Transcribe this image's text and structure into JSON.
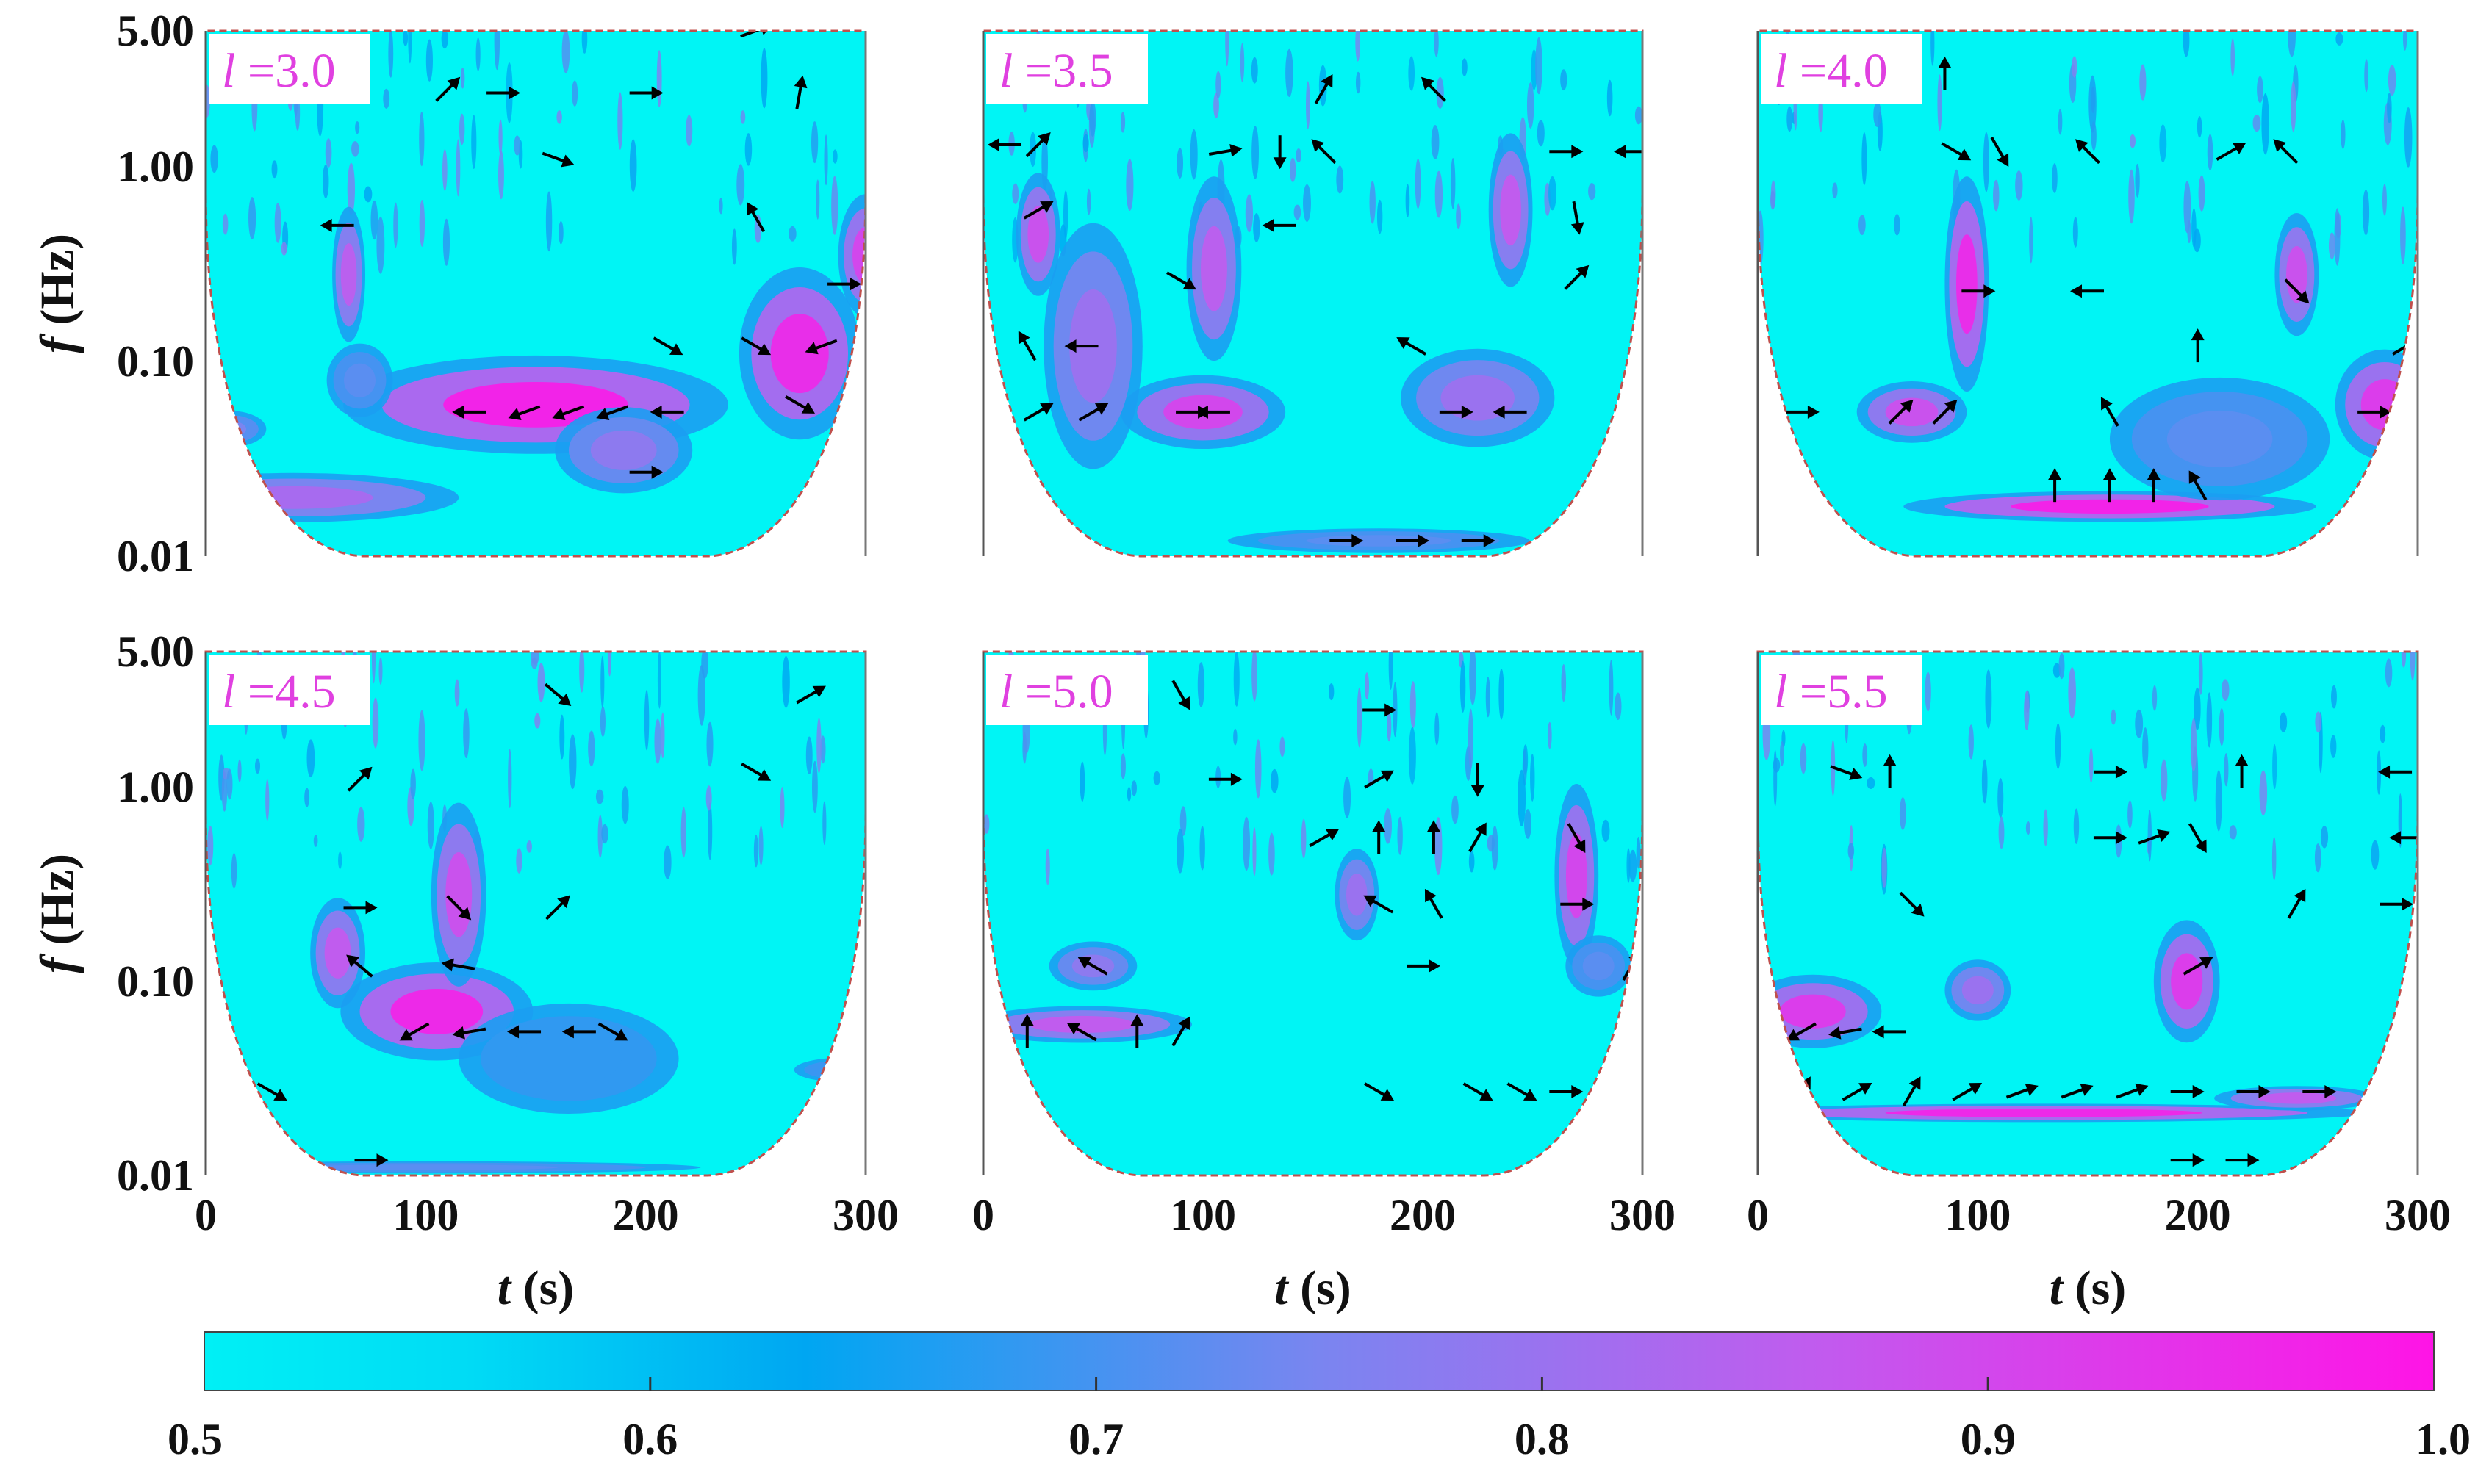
{
  "chart_data": {
    "type": "heatmap",
    "description_type": "wavelet coherence scalograms",
    "x_axis": {
      "label_var": "t",
      "label_unit": " (s)",
      "ticks": [
        "0",
        "100",
        "200",
        "300"
      ],
      "range": [
        0,
        300
      ]
    },
    "y_axis": {
      "label_var": "f",
      "label_unit": " (Hz)",
      "ticks": [
        "5.00",
        "1.00",
        "0.10",
        "0.01"
      ],
      "tick_values": [
        5,
        1,
        0.1,
        0.01
      ],
      "range": [
        0.01,
        5
      ],
      "scale": "log"
    },
    "panels": [
      {
        "var": "l",
        "value": "3.0",
        "blobs": [
          {
            "t": 150,
            "f": 0.06,
            "w": 70,
            "h": 0.16,
            "c": 0.97
          },
          {
            "t": 270,
            "f": 0.11,
            "w": 22,
            "h": 0.28,
            "c": 0.95
          },
          {
            "t": 40,
            "f": 0.02,
            "w": 60,
            "h": 0.08,
            "c": 0.82
          },
          {
            "t": 190,
            "f": 0.035,
            "w": 25,
            "h": 0.14,
            "c": 0.78
          },
          {
            "t": 300,
            "f": 0.35,
            "w": 10,
            "h": 0.2,
            "c": 0.9
          },
          {
            "t": 65,
            "f": 0.28,
            "w": 6,
            "h": 0.22,
            "c": 0.85
          },
          {
            "t": 70,
            "f": 0.08,
            "w": 12,
            "h": 0.12,
            "c": 0.72
          },
          {
            "t": 10,
            "f": 0.045,
            "w": 14,
            "h": 0.06,
            "c": 0.75
          }
        ],
        "arrows": [
          {
            "t": 60,
            "f": 0.5,
            "a": 180
          },
          {
            "t": 110,
            "f": 2.5,
            "a": 45
          },
          {
            "t": 135,
            "f": 2.4,
            "a": 0
          },
          {
            "t": 160,
            "f": 1.1,
            "a": -20
          },
          {
            "t": 200,
            "f": 2.4,
            "a": 0
          },
          {
            "t": 250,
            "f": 5,
            "a": 20
          },
          {
            "t": 270,
            "f": 2.4,
            "a": 80
          },
          {
            "t": 250,
            "f": 0.55,
            "a": 120
          },
          {
            "t": 290,
            "f": 0.25,
            "a": 0
          },
          {
            "t": 250,
            "f": 0.12,
            "a": -30
          },
          {
            "t": 280,
            "f": 0.12,
            "a": 200
          },
          {
            "t": 270,
            "f": 0.06,
            "a": -30
          },
          {
            "t": 210,
            "f": 0.12,
            "a": -30
          },
          {
            "t": 120,
            "f": 0.055,
            "a": 180
          },
          {
            "t": 145,
            "f": 0.055,
            "a": 200
          },
          {
            "t": 165,
            "f": 0.055,
            "a": 200
          },
          {
            "t": 185,
            "f": 0.055,
            "a": 200
          },
          {
            "t": 210,
            "f": 0.055,
            "a": 180
          },
          {
            "t": 200,
            "f": 0.027,
            "a": 0
          }
        ]
      },
      {
        "var": "l",
        "value": "3.5",
        "blobs": [
          {
            "t": 100,
            "f": 0.055,
            "w": 30,
            "h": 0.12,
            "c": 0.9
          },
          {
            "t": 225,
            "f": 0.065,
            "w": 28,
            "h": 0.16,
            "c": 0.8
          },
          {
            "t": 50,
            "f": 0.12,
            "w": 18,
            "h": 0.4,
            "c": 0.8
          },
          {
            "t": 105,
            "f": 0.3,
            "w": 10,
            "h": 0.3,
            "c": 0.85
          },
          {
            "t": 25,
            "f": 0.45,
            "w": 8,
            "h": 0.2,
            "c": 0.88
          },
          {
            "t": 240,
            "f": 0.6,
            "w": 8,
            "h": 0.25,
            "c": 0.86
          },
          {
            "t": 180,
            "f": 0.012,
            "w": 55,
            "h": 0.04,
            "c": 0.72
          }
        ],
        "arrows": [
          {
            "t": 10,
            "f": 1.3,
            "a": 180
          },
          {
            "t": 25,
            "f": 1.3,
            "a": 45
          },
          {
            "t": 25,
            "f": 0.6,
            "a": 30
          },
          {
            "t": 110,
            "f": 1.2,
            "a": 10
          },
          {
            "t": 135,
            "f": 1.2,
            "a": -90
          },
          {
            "t": 155,
            "f": 1.2,
            "a": 135
          },
          {
            "t": 155,
            "f": 2.5,
            "a": 60
          },
          {
            "t": 205,
            "f": 2.5,
            "a": 135
          },
          {
            "t": 135,
            "f": 0.5,
            "a": 180
          },
          {
            "t": 265,
            "f": 1.2,
            "a": 0
          },
          {
            "t": 295,
            "f": 1.2,
            "a": 180
          },
          {
            "t": 270,
            "f": 0.55,
            "a": -80
          },
          {
            "t": 270,
            "f": 0.27,
            "a": 45
          },
          {
            "t": 90,
            "f": 0.26,
            "a": -30
          },
          {
            "t": 20,
            "f": 0.12,
            "a": 120
          },
          {
            "t": 45,
            "f": 0.12,
            "a": 180
          },
          {
            "t": 25,
            "f": 0.055,
            "a": 30
          },
          {
            "t": 50,
            "f": 0.055,
            "a": 30
          },
          {
            "t": 95,
            "f": 0.055,
            "a": 0
          },
          {
            "t": 105,
            "f": 0.055,
            "a": 180
          },
          {
            "t": 195,
            "f": 0.12,
            "a": 150
          },
          {
            "t": 215,
            "f": 0.055,
            "a": 0
          },
          {
            "t": 240,
            "f": 0.055,
            "a": 180
          },
          {
            "t": 165,
            "f": 0.012,
            "a": 0
          },
          {
            "t": 195,
            "f": 0.012,
            "a": 0
          },
          {
            "t": 225,
            "f": 0.012,
            "a": 0
          }
        ]
      },
      {
        "var": "l",
        "value": "4.0",
        "blobs": [
          {
            "t": 160,
            "f": 0.018,
            "w": 75,
            "h": 0.05,
            "c": 0.97
          },
          {
            "t": 70,
            "f": 0.055,
            "w": 20,
            "h": 0.1,
            "c": 0.88
          },
          {
            "t": 285,
            "f": 0.06,
            "w": 18,
            "h": 0.18,
            "c": 0.92
          },
          {
            "t": 95,
            "f": 0.25,
            "w": 8,
            "h": 0.35,
            "c": 0.95
          },
          {
            "t": 245,
            "f": 0.28,
            "w": 8,
            "h": 0.2,
            "c": 0.88
          },
          {
            "t": 210,
            "f": 0.04,
            "w": 40,
            "h": 0.2,
            "c": 0.72
          }
        ],
        "arrows": [
          {
            "t": 90,
            "f": 1.2,
            "a": -30
          },
          {
            "t": 110,
            "f": 1.2,
            "a": -60
          },
          {
            "t": 150,
            "f": 1.2,
            "a": 135
          },
          {
            "t": 215,
            "f": 1.2,
            "a": 30
          },
          {
            "t": 240,
            "f": 1.2,
            "a": 135
          },
          {
            "t": 85,
            "f": 3,
            "a": 90
          },
          {
            "t": 100,
            "f": 0.23,
            "a": 0
          },
          {
            "t": 150,
            "f": 0.23,
            "a": 180
          },
          {
            "t": 245,
            "f": 0.23,
            "a": -45
          },
          {
            "t": 200,
            "f": 0.12,
            "a": 90
          },
          {
            "t": 295,
            "f": 0.12,
            "a": 30
          },
          {
            "t": 20,
            "f": 0.055,
            "a": 0
          },
          {
            "t": 65,
            "f": 0.055,
            "a": 45
          },
          {
            "t": 85,
            "f": 0.055,
            "a": 45
          },
          {
            "t": 160,
            "f": 0.055,
            "a": 120
          },
          {
            "t": 280,
            "f": 0.055,
            "a": 0
          },
          {
            "t": 135,
            "f": 0.023,
            "a": 90
          },
          {
            "t": 160,
            "f": 0.023,
            "a": 90
          },
          {
            "t": 180,
            "f": 0.023,
            "a": 90
          },
          {
            "t": 200,
            "f": 0.023,
            "a": 120
          }
        ]
      },
      {
        "var": "l",
        "value": "4.5",
        "blobs": [
          {
            "t": 105,
            "f": 0.07,
            "w": 35,
            "h": 0.16,
            "c": 0.96
          },
          {
            "t": 60,
            "f": 0.14,
            "w": 10,
            "h": 0.18,
            "c": 0.86
          },
          {
            "t": 115,
            "f": 0.28,
            "w": 10,
            "h": 0.3,
            "c": 0.88
          },
          {
            "t": 100,
            "f": 0.011,
            "w": 100,
            "h": 0.02,
            "c": 0.72
          },
          {
            "t": 290,
            "f": 0.035,
            "w": 18,
            "h": 0.04,
            "c": 0.7
          },
          {
            "t": 165,
            "f": 0.04,
            "w": 40,
            "h": 0.18,
            "c": 0.68
          }
        ],
        "arrows": [
          {
            "t": 70,
            "f": 1.1,
            "a": 45
          },
          {
            "t": 160,
            "f": 3,
            "a": -40
          },
          {
            "t": 275,
            "f": 3,
            "a": 30
          },
          {
            "t": 250,
            "f": 1.2,
            "a": -30
          },
          {
            "t": 70,
            "f": 0.24,
            "a": 0
          },
          {
            "t": 115,
            "f": 0.24,
            "a": -45
          },
          {
            "t": 160,
            "f": 0.24,
            "a": 45
          },
          {
            "t": 70,
            "f": 0.12,
            "a": 140
          },
          {
            "t": 115,
            "f": 0.12,
            "a": 170
          },
          {
            "t": 95,
            "f": 0.055,
            "a": 210
          },
          {
            "t": 120,
            "f": 0.055,
            "a": 190
          },
          {
            "t": 145,
            "f": 0.055,
            "a": 180
          },
          {
            "t": 170,
            "f": 0.055,
            "a": 180
          },
          {
            "t": 185,
            "f": 0.055,
            "a": -30
          },
          {
            "t": 30,
            "f": 0.027,
            "a": -30
          },
          {
            "t": 75,
            "f": 0.012,
            "a": 0
          }
        ]
      },
      {
        "var": "l",
        "value": "5.0",
        "blobs": [
          {
            "t": 45,
            "f": 0.06,
            "w": 40,
            "h": 0.06,
            "c": 0.86
          },
          {
            "t": 270,
            "f": 0.35,
            "w": 8,
            "h": 0.3,
            "c": 0.9
          },
          {
            "t": 50,
            "f": 0.12,
            "w": 16,
            "h": 0.08,
            "c": 0.78
          },
          {
            "t": 170,
            "f": 0.28,
            "w": 8,
            "h": 0.15,
            "c": 0.8
          },
          {
            "t": 280,
            "f": 0.12,
            "w": 12,
            "h": 0.1,
            "c": 0.72
          }
        ],
        "arrows": [
          {
            "t": 90,
            "f": 3,
            "a": -60
          },
          {
            "t": 180,
            "f": 2.5,
            "a": 0
          },
          {
            "t": 110,
            "f": 1.1,
            "a": 0
          },
          {
            "t": 180,
            "f": 1.1,
            "a": 30
          },
          {
            "t": 225,
            "f": 1.1,
            "a": -90
          },
          {
            "t": 155,
            "f": 0.55,
            "a": 30
          },
          {
            "t": 180,
            "f": 0.55,
            "a": 90
          },
          {
            "t": 205,
            "f": 0.55,
            "a": 90
          },
          {
            "t": 225,
            "f": 0.55,
            "a": 60
          },
          {
            "t": 270,
            "f": 0.55,
            "a": -60
          },
          {
            "t": 180,
            "f": 0.25,
            "a": 150
          },
          {
            "t": 205,
            "f": 0.25,
            "a": 120
          },
          {
            "t": 270,
            "f": 0.25,
            "a": 0
          },
          {
            "t": 50,
            "f": 0.12,
            "a": 150
          },
          {
            "t": 200,
            "f": 0.12,
            "a": 0
          },
          {
            "t": 295,
            "f": 0.12,
            "a": 60
          },
          {
            "t": 20,
            "f": 0.055,
            "a": 90
          },
          {
            "t": 45,
            "f": 0.055,
            "a": 150
          },
          {
            "t": 70,
            "f": 0.055,
            "a": 90
          },
          {
            "t": 90,
            "f": 0.055,
            "a": 60
          },
          {
            "t": 180,
            "f": 0.027,
            "a": -30
          },
          {
            "t": 225,
            "f": 0.027,
            "a": -30
          },
          {
            "t": 245,
            "f": 0.027,
            "a": -30
          },
          {
            "t": 265,
            "f": 0.027,
            "a": 0
          }
        ]
      },
      {
        "var": "l",
        "value": "5.5",
        "blobs": [
          {
            "t": 130,
            "f": 0.021,
            "w": 120,
            "h": 0.03,
            "c": 0.96
          },
          {
            "t": 25,
            "f": 0.07,
            "w": 25,
            "h": 0.12,
            "c": 0.92
          },
          {
            "t": 195,
            "f": 0.1,
            "w": 12,
            "h": 0.2,
            "c": 0.92
          },
          {
            "t": 100,
            "f": 0.09,
            "w": 12,
            "h": 0.1,
            "c": 0.8
          },
          {
            "t": 245,
            "f": 0.025,
            "w": 30,
            "h": 0.04,
            "c": 0.86
          }
        ],
        "arrows": [
          {
            "t": 40,
            "f": 1.2,
            "a": -20
          },
          {
            "t": 60,
            "f": 1.2,
            "a": 90
          },
          {
            "t": 160,
            "f": 1.2,
            "a": 0
          },
          {
            "t": 220,
            "f": 1.2,
            "a": 90
          },
          {
            "t": 290,
            "f": 1.2,
            "a": 180
          },
          {
            "t": 160,
            "f": 0.55,
            "a": 0
          },
          {
            "t": 180,
            "f": 0.55,
            "a": 20
          },
          {
            "t": 200,
            "f": 0.55,
            "a": -60
          },
          {
            "t": 295,
            "f": 0.55,
            "a": 180
          },
          {
            "t": 70,
            "f": 0.25,
            "a": -45
          },
          {
            "t": 245,
            "f": 0.25,
            "a": 60
          },
          {
            "t": 290,
            "f": 0.25,
            "a": 0
          },
          {
            "t": 200,
            "f": 0.12,
            "a": 30
          },
          {
            "t": 20,
            "f": 0.055,
            "a": 210
          },
          {
            "t": 40,
            "f": 0.055,
            "a": 190
          },
          {
            "t": 60,
            "f": 0.055,
            "a": 180
          },
          {
            "t": 20,
            "f": 0.027,
            "a": 60
          },
          {
            "t": 45,
            "f": 0.027,
            "a": 30
          },
          {
            "t": 70,
            "f": 0.027,
            "a": 60
          },
          {
            "t": 95,
            "f": 0.027,
            "a": 30
          },
          {
            "t": 120,
            "f": 0.027,
            "a": 20
          },
          {
            "t": 145,
            "f": 0.027,
            "a": 20
          },
          {
            "t": 170,
            "f": 0.027,
            "a": 20
          },
          {
            "t": 195,
            "f": 0.027,
            "a": 0
          },
          {
            "t": 225,
            "f": 0.027,
            "a": 0
          },
          {
            "t": 255,
            "f": 0.027,
            "a": 0
          },
          {
            "t": 195,
            "f": 0.012,
            "a": 0
          },
          {
            "t": 220,
            "f": 0.012,
            "a": 0
          }
        ]
      }
    ],
    "colorbar": {
      "range": [
        0.5,
        1.0
      ],
      "tick_labels": [
        "0.5",
        "0.6",
        "0.7",
        "0.8",
        "0.9",
        "1.0"
      ],
      "tick_values": [
        0.5,
        0.6,
        0.7,
        0.8,
        0.9,
        1.0
      ],
      "colors": [
        "#00f0f5",
        "#00dbf5",
        "#00a6f2",
        "#7a85f0",
        "#c05cee",
        "#ff14e6"
      ],
      "color_stops": [
        0.0,
        0.12,
        0.27,
        0.5,
        0.72,
        1.0
      ]
    }
  },
  "style": {
    "base_color": "#00f5f5",
    "label_color": "#e040e0",
    "cone_edge_color": "#c0504d",
    "arrow_color": "#000000",
    "text_color": "#111111"
  }
}
